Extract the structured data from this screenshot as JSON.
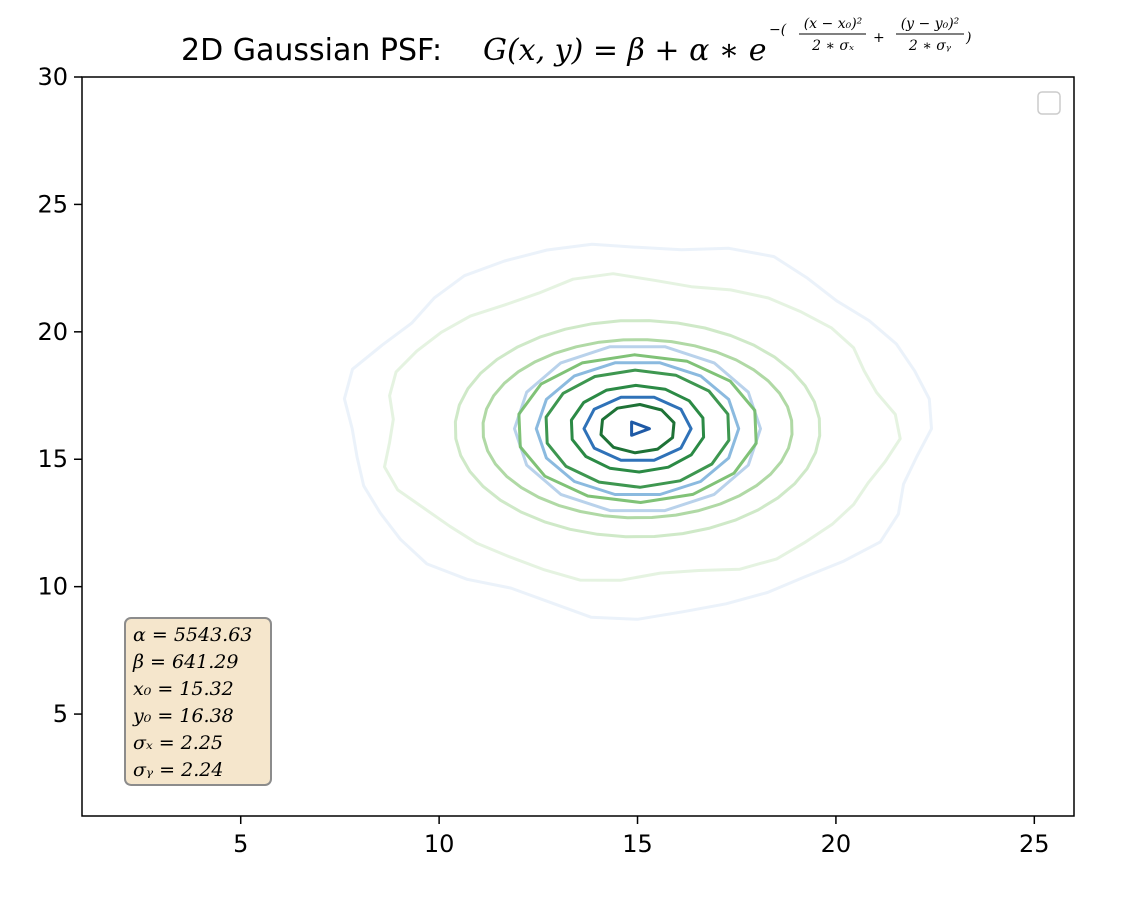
{
  "chart_data": {
    "type": "contour",
    "title": {
      "prefix": "2D Gaussian PSF: ",
      "formula_base": "G(x, y) = β + α ∗ e",
      "exponent_lead": "−(",
      "frac1_num": "(x − x₀)²",
      "frac1_den": "2 ∗ σₓ",
      "plus": "+",
      "frac2_num": "(y − y₀)²",
      "frac2_den": "2 ∗ σᵧ",
      "exponent_tail": ")"
    },
    "xlim": [
      1,
      26
    ],
    "ylim": [
      1,
      30
    ],
    "x_ticks": [
      5,
      10,
      15,
      20,
      25
    ],
    "y_ticks": [
      5,
      10,
      15,
      20,
      25,
      30
    ],
    "grid": false,
    "legend": {
      "placement": "upper-right",
      "entries": []
    },
    "model": {
      "alpha": 5543.63,
      "beta": 641.29,
      "x0": 15.32,
      "y0": 16.38,
      "sigma_x": 2.25,
      "sigma_y": 2.24
    },
    "center_drawn": [
      15.0,
      16.2
    ],
    "series": [
      {
        "colormap": "Blues",
        "levels": [
          {
            "rx": 7.3,
            "ry": 7.3,
            "color": "#dbe8f6",
            "opacity": 0.55
          },
          {
            "rx": 3.1,
            "ry": 3.3,
            "color": "#a7c7e6",
            "opacity": 0.8
          },
          {
            "rx": 2.55,
            "ry": 2.65,
            "color": "#7eb3dc",
            "opacity": 0.9
          },
          {
            "rx": 1.35,
            "ry": 1.3,
            "color": "#2f72b8",
            "opacity": 1.0
          },
          {
            "rx": 0.3,
            "ry": 0.3,
            "color": "#1f5aa6",
            "opacity": 1.0
          }
        ]
      },
      {
        "colormap": "Greens",
        "levels": [
          {
            "rx": 6.4,
            "ry": 5.9,
            "color": "#cfe9c8",
            "opacity": 0.55
          },
          {
            "rx": 4.6,
            "ry": 4.25,
            "color": "#bfe1b5",
            "opacity": 0.75
          },
          {
            "rx": 3.9,
            "ry": 3.5,
            "color": "#9cd08e",
            "opacity": 0.8
          },
          {
            "rx": 3.05,
            "ry": 2.9,
            "color": "#72bb68",
            "opacity": 0.9
          },
          {
            "rx": 2.35,
            "ry": 2.3,
            "color": "#3e9750",
            "opacity": 1.0
          },
          {
            "rx": 1.7,
            "ry": 1.7,
            "color": "#2b8a45",
            "opacity": 1.0
          },
          {
            "rx": 0.95,
            "ry": 0.95,
            "color": "#1e7236",
            "opacity": 1.0
          }
        ]
      }
    ],
    "params_box": {
      "lines": [
        "α = 5543.63",
        "β = 641.29",
        "x₀ = 15.32",
        "y₀ = 16.38",
        "σₓ = 2.25",
        "σᵧ = 2.24"
      ],
      "face_color": "#f5e6cc",
      "edge_color": "#8c8c8c"
    }
  }
}
